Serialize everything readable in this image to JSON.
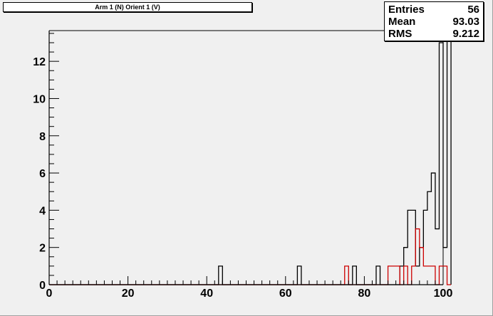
{
  "title_box": {
    "text": "Arm 1 (N) Orient 1 (V)"
  },
  "stats": [
    {
      "label": "Entries",
      "value": "56"
    },
    {
      "label": "Mean",
      "value": "93.03"
    },
    {
      "label": "RMS",
      "value": "9.212"
    }
  ],
  "chart_data": {
    "type": "histogram",
    "xlim": [
      0,
      100
    ],
    "ylim": [
      0,
      13.65
    ],
    "bin_width": 1,
    "x_ticks": [
      0,
      20,
      40,
      60,
      80,
      100
    ],
    "y_ticks": [
      0,
      2,
      4,
      6,
      8,
      10,
      12
    ],
    "grid": false,
    "series": [
      {
        "color": "#000000",
        "bins": [
          [
            43,
            1
          ],
          [
            63,
            1
          ],
          [
            77,
            1
          ],
          [
            83,
            1
          ],
          [
            89,
            1
          ],
          [
            90,
            2
          ],
          [
            91,
            4
          ],
          [
            92,
            4
          ],
          [
            93,
            1
          ],
          [
            94,
            2
          ],
          [
            95,
            4
          ],
          [
            96,
            5
          ],
          [
            97,
            6
          ],
          [
            98,
            3
          ],
          [
            99,
            13
          ],
          [
            100,
            2
          ],
          [
            101,
            14
          ]
        ]
      },
      {
        "color": "#cc0000",
        "bins": [
          [
            75,
            1
          ],
          [
            86,
            1
          ],
          [
            87,
            1
          ],
          [
            88,
            1
          ],
          [
            90,
            1
          ],
          [
            92,
            1
          ],
          [
            93,
            3
          ],
          [
            94,
            2
          ],
          [
            95,
            1
          ],
          [
            96,
            1
          ],
          [
            97,
            1
          ],
          [
            99,
            1
          ],
          [
            100,
            1
          ]
        ]
      }
    ]
  }
}
